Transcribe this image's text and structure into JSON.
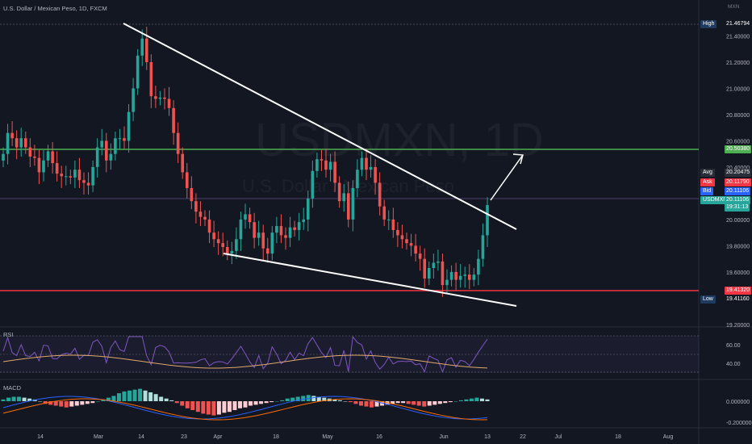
{
  "header": {
    "title": "U.S. Dollar / Mexican Peso, 1D, FXCM",
    "currency": "MXN"
  },
  "watermark": {
    "symbol": "USDMXN, 1D",
    "name": "U.S. Dollar / Mexican Peso"
  },
  "price_labels": [
    {
      "name": "High",
      "value": "21.46794",
      "color": "#131722",
      "tag_bg": "#1e3a5f"
    },
    {
      "name": "",
      "value": "20.50380",
      "color": "#4caf50",
      "tag_bg": ""
    },
    {
      "name": "Avg",
      "value": "20.20475",
      "color": "#2a2e39",
      "tag_bg": "#2a2e39"
    },
    {
      "name": "Ask",
      "value": "20.11790",
      "color": "#f23645",
      "tag_bg": "#f23645"
    },
    {
      "name": "Bid",
      "value": "20.11106",
      "color": "#2962ff",
      "tag_bg": "#2962ff"
    },
    {
      "name": "USDMXN",
      "value": "20.11106",
      "color": "#26a69a",
      "tag_bg": "#26a69a"
    },
    {
      "name": "",
      "value": "19:31:13",
      "color": "#26a69a",
      "tag_bg": ""
    },
    {
      "name": "",
      "value": "19.41320",
      "color": "#f23645",
      "tag_bg": ""
    },
    {
      "name": "Low",
      "value": "19.41160",
      "color": "#131722",
      "tag_bg": "#1e3a5f"
    }
  ],
  "rsi_label": "RSI",
  "macd_label": "MACD",
  "chart_data": {
    "type": "candlestick",
    "y_ticks": [
      "21.40000",
      "21.20000",
      "21.00000",
      "20.80000",
      "20.60000",
      "20.40000",
      "20.00000",
      "19.80000",
      "19.60000",
      "19.20000"
    ],
    "rsi_ticks": [
      "60.00",
      "40.00"
    ],
    "macd_ticks": [
      "0.000000",
      "-0.200000"
    ],
    "x_ticks": [
      "14",
      "Mar",
      "14",
      "23",
      "Apr",
      "18",
      "May",
      "16",
      "Jun",
      "13",
      "22",
      "Jul",
      "18",
      "Aug"
    ],
    "ylim": [
      19.15,
      21.52
    ],
    "closes": [
      20.5,
      20.66,
      20.62,
      20.55,
      20.62,
      20.55,
      20.48,
      20.47,
      20.36,
      20.45,
      20.52,
      20.43,
      20.35,
      20.33,
      20.33,
      20.32,
      20.38,
      20.3,
      20.28,
      20.26,
      20.4,
      20.55,
      20.6,
      20.45,
      20.5,
      20.62,
      20.62,
      20.6,
      20.82,
      21.0,
      21.25,
      21.38,
      21.2,
      20.94,
      20.92,
      20.93,
      20.92,
      20.85,
      20.66,
      20.5,
      20.36,
      20.24,
      20.14,
      20.06,
      20.02,
      20.0,
      19.9,
      19.85,
      19.82,
      19.79,
      19.74,
      19.76,
      19.85,
      20.0,
      20.04,
      19.98,
      19.86,
      19.9,
      19.78,
      19.74,
      19.9,
      19.95,
      19.88,
      19.86,
      19.94,
      19.92,
      19.98,
      20.0,
      20.16,
      20.37,
      20.46,
      20.45,
      20.38,
      20.44,
      20.28,
      20.14,
      20.2,
      20.0,
      20.24,
      20.38,
      20.47,
      20.38,
      20.4,
      20.28,
      20.1,
      20.0,
      20.0,
      19.92,
      19.88,
      19.85,
      19.82,
      19.8,
      19.74,
      19.7,
      19.55,
      19.63,
      19.67,
      19.68,
      19.5,
      19.54,
      19.6,
      19.54,
      19.57,
      19.58,
      19.54,
      19.58,
      19.7,
      19.88,
      20.11
    ],
    "macd": [
      0.02,
      0.04,
      0.05,
      0.05,
      0.04,
      0.03,
      0.02,
      0.0,
      -0.03,
      -0.04,
      -0.05,
      -0.06,
      -0.07,
      -0.06,
      -0.05,
      -0.04,
      -0.03,
      -0.02,
      0.0,
      0.02,
      0.04,
      0.06,
      0.09,
      0.11,
      0.12,
      0.13,
      0.14,
      0.12,
      0.1,
      0.08,
      0.05,
      0.03,
      0.01,
      -0.02,
      -0.05,
      -0.08,
      -0.1,
      -0.12,
      -0.14,
      -0.15,
      -0.16,
      -0.15,
      -0.13,
      -0.12,
      -0.1,
      -0.08,
      -0.07,
      -0.05,
      -0.04,
      -0.03,
      -0.02,
      -0.01,
      0.0,
      0.01,
      0.03,
      0.04,
      0.05,
      0.06,
      0.07,
      0.06,
      0.05,
      0.04,
      0.03,
      0.02,
      0.01,
      0.0,
      -0.01,
      -0.03,
      -0.05,
      -0.06,
      -0.07,
      -0.06,
      -0.05,
      -0.04,
      -0.03,
      -0.02,
      -0.02,
      -0.03,
      -0.04,
      -0.05,
      -0.06,
      -0.05,
      -0.04,
      -0.03,
      -0.02,
      -0.01,
      0.0,
      0.01,
      0.02,
      0.03,
      0.04,
      0.03,
      0.02
    ]
  }
}
